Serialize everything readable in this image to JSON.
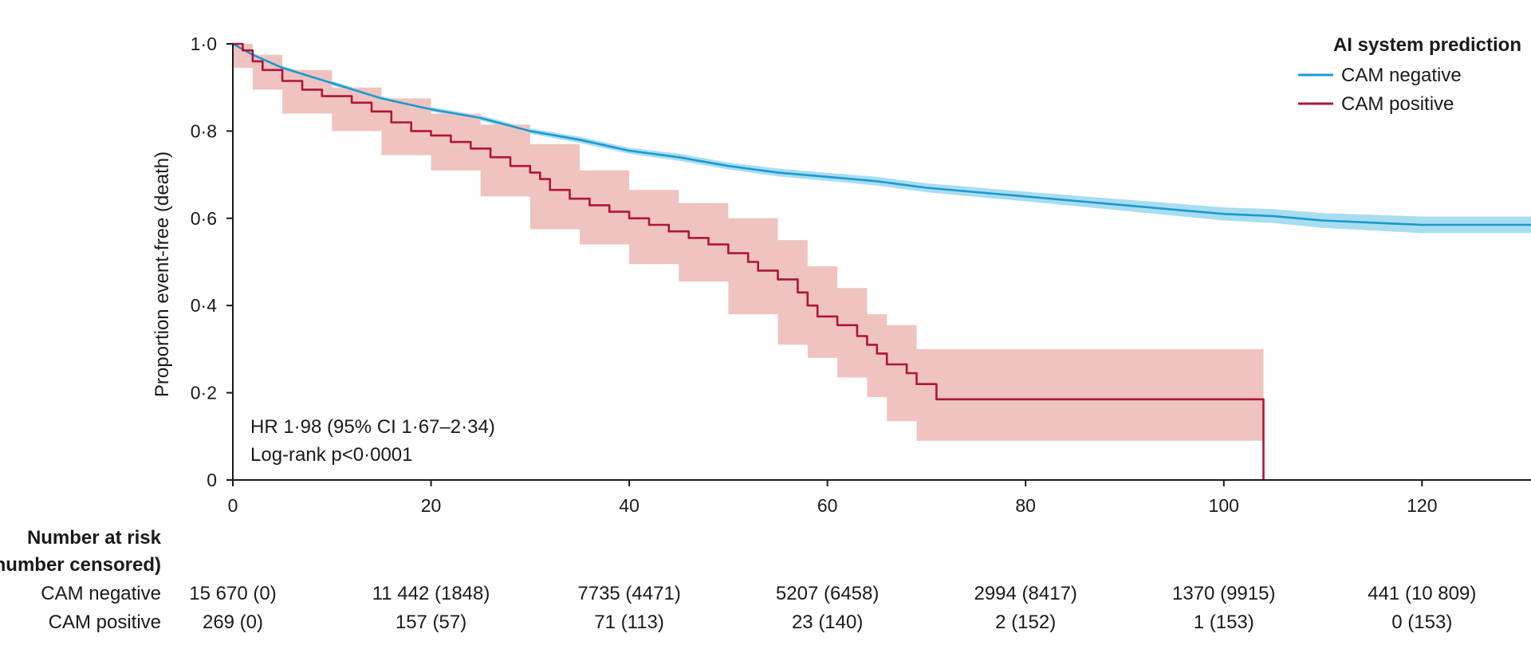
{
  "chart_data": {
    "type": "line",
    "title": "",
    "xlabel": "",
    "ylabel": "Proportion event-free (death)",
    "xlim": [
      0,
      131
    ],
    "ylim": [
      0,
      1.0
    ],
    "x_ticks": [
      "0",
      "20",
      "40",
      "60",
      "80",
      "100",
      "120"
    ],
    "x_tick_values": [
      0,
      20,
      40,
      60,
      80,
      100,
      120
    ],
    "y_ticks": [
      "0",
      "0·2",
      "0·4",
      "0·6",
      "0·8",
      "1·0"
    ],
    "y_tick_values": [
      0,
      0.2,
      0.4,
      0.6,
      0.8,
      1.0
    ],
    "grid": false,
    "legend": {
      "title": "AI system prediction",
      "placement": "top-right",
      "entries": [
        "CAM negative",
        "CAM positive"
      ]
    },
    "annotations": [
      "HR 1·98 (95% CI 1·67–2·34)",
      "Log-rank p<0·0001"
    ],
    "series": [
      {
        "name": "CAM negative",
        "color": "#1b9ad0",
        "ci_color": "#a9ddf0",
        "step": false,
        "points": [
          [
            0,
            1.0
          ],
          [
            2,
            0.975
          ],
          [
            5,
            0.945
          ],
          [
            10,
            0.91
          ],
          [
            15,
            0.875
          ],
          [
            20,
            0.85
          ],
          [
            25,
            0.83
          ],
          [
            30,
            0.8
          ],
          [
            35,
            0.78
          ],
          [
            40,
            0.755
          ],
          [
            45,
            0.74
          ],
          [
            50,
            0.72
          ],
          [
            55,
            0.705
          ],
          [
            60,
            0.695
          ],
          [
            65,
            0.685
          ],
          [
            70,
            0.67
          ],
          [
            75,
            0.66
          ],
          [
            80,
            0.65
          ],
          [
            85,
            0.64
          ],
          [
            90,
            0.63
          ],
          [
            95,
            0.62
          ],
          [
            100,
            0.61
          ],
          [
            105,
            0.605
          ],
          [
            110,
            0.595
          ],
          [
            115,
            0.59
          ],
          [
            120,
            0.585
          ],
          [
            125,
            0.585
          ],
          [
            131,
            0.585
          ]
        ],
        "ci_lower": [
          [
            0,
            1.0
          ],
          [
            2,
            0.97
          ],
          [
            5,
            0.94
          ],
          [
            10,
            0.905
          ],
          [
            15,
            0.87
          ],
          [
            20,
            0.845
          ],
          [
            25,
            0.824
          ],
          [
            30,
            0.794
          ],
          [
            35,
            0.773
          ],
          [
            40,
            0.748
          ],
          [
            45,
            0.732
          ],
          [
            50,
            0.712
          ],
          [
            55,
            0.696
          ],
          [
            60,
            0.686
          ],
          [
            65,
            0.675
          ],
          [
            70,
            0.66
          ],
          [
            75,
            0.649
          ],
          [
            80,
            0.639
          ],
          [
            85,
            0.628
          ],
          [
            90,
            0.617
          ],
          [
            95,
            0.606
          ],
          [
            100,
            0.595
          ],
          [
            105,
            0.589
          ],
          [
            110,
            0.578
          ],
          [
            115,
            0.572
          ],
          [
            120,
            0.566
          ],
          [
            125,
            0.566
          ],
          [
            131,
            0.566
          ]
        ],
        "ci_upper": [
          [
            0,
            1.0
          ],
          [
            2,
            0.98
          ],
          [
            5,
            0.95
          ],
          [
            10,
            0.915
          ],
          [
            15,
            0.88
          ],
          [
            20,
            0.855
          ],
          [
            25,
            0.836
          ],
          [
            30,
            0.806
          ],
          [
            35,
            0.787
          ],
          [
            40,
            0.762
          ],
          [
            45,
            0.748
          ],
          [
            50,
            0.728
          ],
          [
            55,
            0.714
          ],
          [
            60,
            0.704
          ],
          [
            65,
            0.695
          ],
          [
            70,
            0.68
          ],
          [
            75,
            0.671
          ],
          [
            80,
            0.661
          ],
          [
            85,
            0.652
          ],
          [
            90,
            0.643
          ],
          [
            95,
            0.634
          ],
          [
            100,
            0.625
          ],
          [
            105,
            0.621
          ],
          [
            110,
            0.612
          ],
          [
            115,
            0.608
          ],
          [
            120,
            0.604
          ],
          [
            125,
            0.604
          ],
          [
            131,
            0.604
          ]
        ]
      },
      {
        "name": "CAM positive",
        "color": "#b0143c",
        "ci_color": "#efc3c0",
        "step": true,
        "points": [
          [
            0,
            1.0
          ],
          [
            1,
            0.985
          ],
          [
            2,
            0.96
          ],
          [
            3,
            0.94
          ],
          [
            5,
            0.915
          ],
          [
            7,
            0.895
          ],
          [
            9,
            0.88
          ],
          [
            12,
            0.865
          ],
          [
            14,
            0.845
          ],
          [
            16,
            0.82
          ],
          [
            18,
            0.8
          ],
          [
            20,
            0.79
          ],
          [
            22,
            0.775
          ],
          [
            24,
            0.76
          ],
          [
            26,
            0.74
          ],
          [
            28,
            0.72
          ],
          [
            30,
            0.705
          ],
          [
            31,
            0.69
          ],
          [
            32,
            0.665
          ],
          [
            34,
            0.645
          ],
          [
            36,
            0.63
          ],
          [
            38,
            0.615
          ],
          [
            40,
            0.6
          ],
          [
            42,
            0.585
          ],
          [
            44,
            0.57
          ],
          [
            46,
            0.555
          ],
          [
            48,
            0.54
          ],
          [
            50,
            0.52
          ],
          [
            52,
            0.5
          ],
          [
            53,
            0.48
          ],
          [
            55,
            0.46
          ],
          [
            57,
            0.43
          ],
          [
            58,
            0.4
          ],
          [
            59,
            0.375
          ],
          [
            61,
            0.355
          ],
          [
            63,
            0.33
          ],
          [
            64,
            0.31
          ],
          [
            65,
            0.29
          ],
          [
            66,
            0.265
          ],
          [
            68,
            0.245
          ],
          [
            69,
            0.22
          ],
          [
            71,
            0.185
          ],
          [
            104,
            0.185
          ],
          [
            104,
            0.0
          ]
        ],
        "ci_lower": [
          [
            0,
            1.0
          ],
          [
            2,
            0.945
          ],
          [
            5,
            0.895
          ],
          [
            10,
            0.84
          ],
          [
            15,
            0.8
          ],
          [
            20,
            0.745
          ],
          [
            25,
            0.71
          ],
          [
            30,
            0.65
          ],
          [
            35,
            0.575
          ],
          [
            40,
            0.54
          ],
          [
            45,
            0.495
          ],
          [
            50,
            0.455
          ],
          [
            55,
            0.38
          ],
          [
            58,
            0.31
          ],
          [
            61,
            0.28
          ],
          [
            64,
            0.235
          ],
          [
            66,
            0.19
          ],
          [
            69,
            0.135
          ],
          [
            71,
            0.09
          ],
          [
            104,
            0.09
          ]
        ],
        "ci_upper": [
          [
            0,
            1.0
          ],
          [
            2,
            0.975
          ],
          [
            5,
            0.94
          ],
          [
            10,
            0.9
          ],
          [
            15,
            0.875
          ],
          [
            20,
            0.84
          ],
          [
            25,
            0.815
          ],
          [
            30,
            0.77
          ],
          [
            35,
            0.71
          ],
          [
            40,
            0.665
          ],
          [
            45,
            0.635
          ],
          [
            50,
            0.6
          ],
          [
            55,
            0.55
          ],
          [
            58,
            0.49
          ],
          [
            61,
            0.44
          ],
          [
            64,
            0.38
          ],
          [
            66,
            0.355
          ],
          [
            69,
            0.3
          ],
          [
            71,
            0.3
          ],
          [
            104,
            0.3
          ]
        ]
      }
    ]
  },
  "risk_table": {
    "heading_line1": "Number at risk",
    "heading_line2": "(number censored)",
    "rows": [
      {
        "label": "CAM negative",
        "values": [
          "15 670 (0)",
          "11 442 (1848)",
          "7735 (4471)",
          "5207 (6458)",
          "2994 (8417)",
          "1370 (9915)",
          "441 (10 809)"
        ]
      },
      {
        "label": "CAM positive",
        "values": [
          "269 (0)",
          "157 (57)",
          "71 (113)",
          "23 (140)",
          "2 (152)",
          "1 (153)",
          "0 (153)"
        ]
      }
    ]
  }
}
